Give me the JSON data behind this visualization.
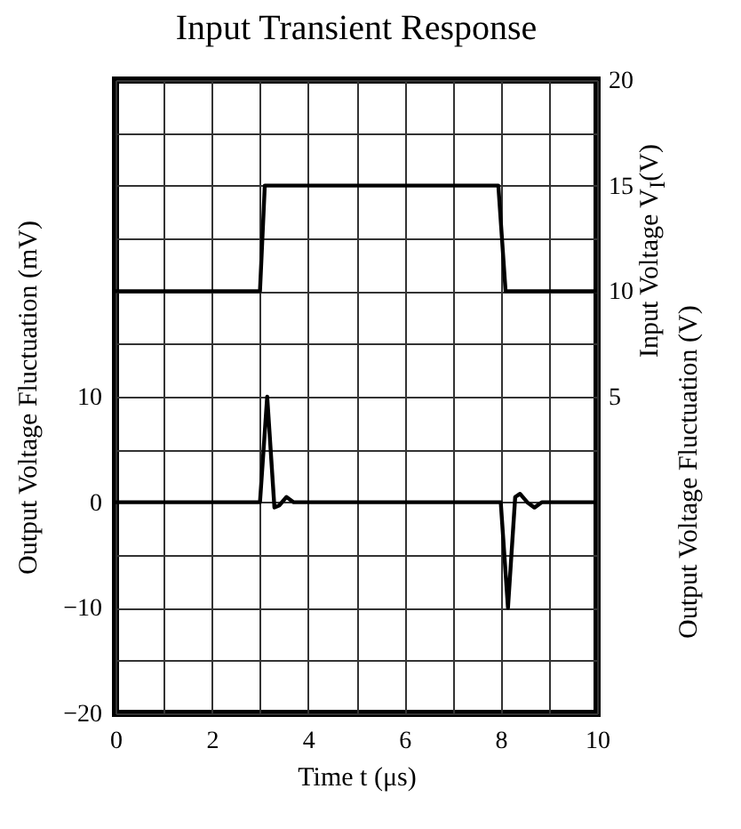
{
  "chart_data": {
    "type": "line",
    "title": "Input Transient Response",
    "xlabel": "Time  t (μs)",
    "ylabel": "Output Voltage Fluctuation (mV)",
    "y2label": "Input Voltage  V$_{I}$(V)",
    "annotations": [
      "Output Voltage Fluctuation (V)"
    ],
    "xlim": [
      0,
      10
    ],
    "xticks": [
      0,
      {
        "value": 1,
        "label": null
      },
      2,
      {
        "value": 3,
        "label": null
      },
      4,
      {
        "value": 5,
        "label": null
      },
      6,
      {
        "value": 7,
        "label": null
      },
      8,
      {
        "value": 9,
        "label": null
      },
      10
    ],
    "ylim": [
      -20,
      40
    ],
    "yticks": [
      -20,
      {
        "value": -15,
        "label": null
      },
      -10,
      {
        "value": -5,
        "label": null
      },
      0,
      {
        "value": 5,
        "label": null
      },
      10,
      {
        "value": 15,
        "label": null
      },
      {
        "value": 20,
        "label": null
      },
      {
        "value": 25,
        "label": null
      },
      {
        "value": 30,
        "label": null
      },
      {
        "value": 35,
        "label": null
      },
      {
        "value": 40,
        "label": null
      }
    ],
    "y2lim": [
      -10,
      20
    ],
    "y2ticks": [
      5,
      10,
      15,
      20
    ],
    "grid": true,
    "line_style": "solid",
    "series": [
      {
        "color": "#000000",
        "x": [
          0,
          3.0,
          3.15,
          3.3,
          3.4,
          3.55,
          3.7,
          8.0,
          8.15,
          8.3,
          8.4,
          8.55,
          8.7,
          8.85,
          10
        ],
        "values": [
          0,
          0,
          10,
          -0.5,
          -0.3,
          0.5,
          0,
          0,
          -10,
          0.5,
          0.8,
          0,
          -0.5,
          0,
          0
        ]
      },
      {
        "color": "#000000",
        "axis": "y2",
        "x": [
          0,
          3.0,
          3.1,
          7.95,
          8.1,
          10
        ],
        "values": [
          10,
          10,
          15,
          15,
          10,
          10
        ]
      }
    ]
  }
}
